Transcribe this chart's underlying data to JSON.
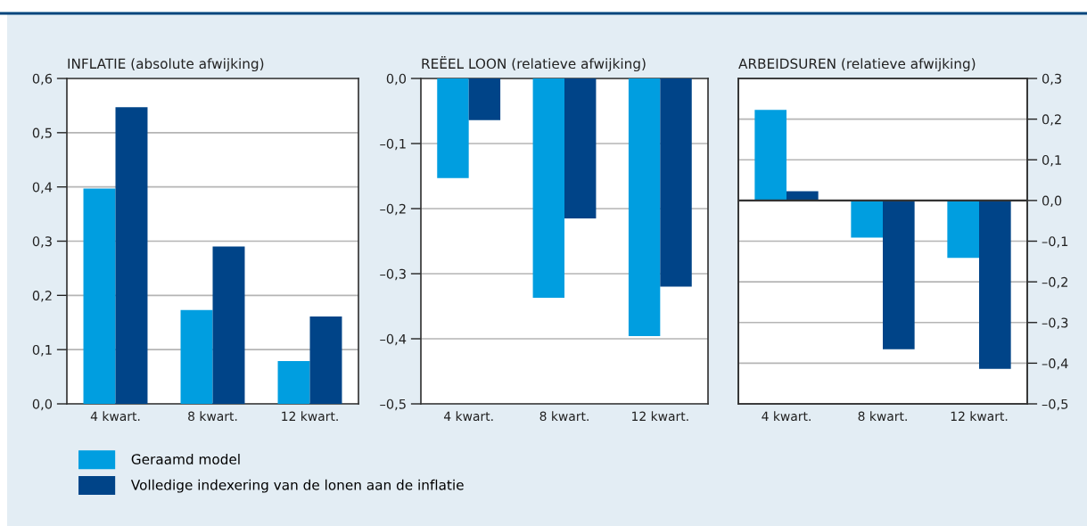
{
  "chart_data": [
    {
      "type": "bar",
      "title": "INFLATIE (absolute afwijking)",
      "categories": [
        "4 kwart.",
        "8 kwart.",
        "12 kwart."
      ],
      "series": [
        {
          "name": "Geraamd model",
          "color": "#009ee0",
          "values": [
            0.397,
            0.173,
            0.079
          ]
        },
        {
          "name": "Volledige indexering van de lonen aan de inflatie",
          "color": "#004488",
          "values": [
            0.547,
            0.29,
            0.161
          ]
        }
      ],
      "ylim": [
        0,
        0.6
      ],
      "yticks": [
        {
          "value": 0,
          "label": "0,0"
        },
        {
          "value": 0.1,
          "label": "0,1"
        },
        {
          "value": 0.2,
          "label": "0,2"
        },
        {
          "value": 0.3,
          "label": "0,3"
        },
        {
          "value": 0.4,
          "label": "0,4"
        },
        {
          "value": 0.5,
          "label": "0,5"
        },
        {
          "value": 0.6,
          "label": "0,6"
        }
      ],
      "grid": "y",
      "legend": "bottom"
    },
    {
      "type": "bar",
      "title": "REËEL LOON (relatieve afwijking)",
      "categories": [
        "4 kwart.",
        "8 kwart.",
        "12 kwart."
      ],
      "series": [
        {
          "color": "#009ee0",
          "values": [
            -0.153,
            -0.337,
            -0.396
          ]
        },
        {
          "color": "#004488",
          "values": [
            -0.064,
            -0.215,
            -0.32
          ]
        }
      ],
      "ylim": [
        -0.5,
        0
      ],
      "yticks": [
        {
          "value": -0.5,
          "label": "–0,5"
        },
        {
          "value": -0.4,
          "label": "–0,4"
        },
        {
          "value": -0.3,
          "label": "–0,3"
        },
        {
          "value": -0.2,
          "label": "–0,2"
        },
        {
          "value": -0.1,
          "label": "–0,1"
        },
        {
          "value": 0,
          "label": "0,0"
        }
      ],
      "grid": "y"
    },
    {
      "type": "bar",
      "title": "ARBEIDSUREN (relatieve afwijking)",
      "categories": [
        "4 kwart.",
        "8 kwart.",
        "12 kwart."
      ],
      "series": [
        {
          "color": "#009ee0",
          "values": [
            0.223,
            -0.091,
            -0.141
          ],
          "axis": "y2"
        },
        {
          "color": "#004488",
          "values": [
            0.023,
            -0.366,
            -0.414
          ],
          "axis": "y2"
        }
      ],
      "y2lim": [
        -0.5,
        0.3
      ],
      "y2ticks": [
        {
          "value": -0.5,
          "label": "–0,5"
        },
        {
          "value": -0.4,
          "label": "–0,4"
        },
        {
          "value": -0.3,
          "label": "–0,3"
        },
        {
          "value": -0.2,
          "label": "–0,2"
        },
        {
          "value": -0.1,
          "label": "–0,1"
        },
        {
          "value": 0,
          "label": "0,0"
        },
        {
          "value": 0.1,
          "label": "0,1"
        },
        {
          "value": 0.2,
          "label": "0,2"
        },
        {
          "value": 0.3,
          "label": "0,3"
        }
      ],
      "grid": "y",
      "ref_lines": [
        {
          "axis": "y2",
          "value": 0,
          "color": "#333333"
        }
      ]
    }
  ]
}
